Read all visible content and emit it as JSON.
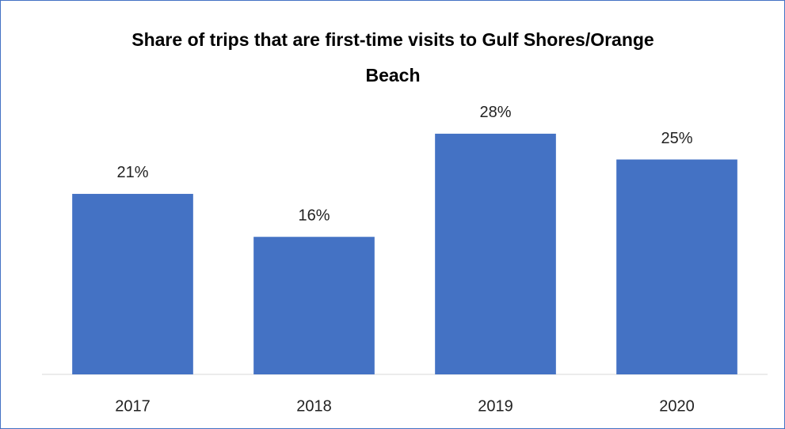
{
  "chart_data": {
    "type": "bar",
    "title": "Share of trips that are first-time visits to Gulf Shores/Orange Beach",
    "categories": [
      "2017",
      "2018",
      "2019",
      "2020"
    ],
    "values": [
      21,
      16,
      28,
      25
    ],
    "value_labels": [
      "21%",
      "16%",
      "28%",
      "25%"
    ],
    "color": "#4472c4",
    "grid": false
  }
}
